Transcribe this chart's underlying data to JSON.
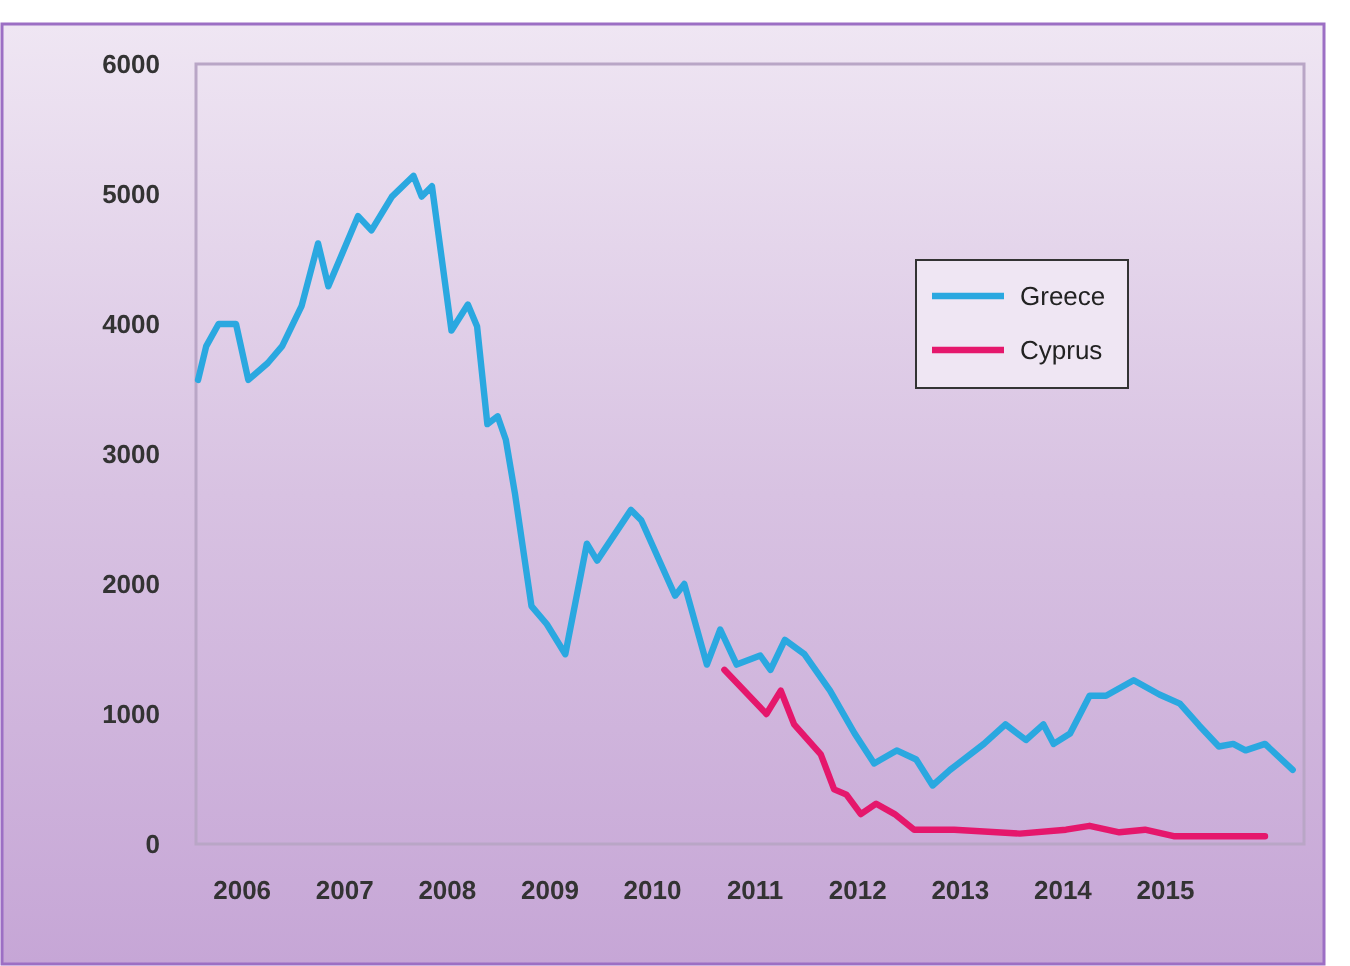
{
  "chart_data": {
    "type": "line",
    "xlim": [
      2005.55,
      2016.35
    ],
    "xticks": [
      2006,
      2007,
      2008,
      2009,
      2010,
      2011,
      2012,
      2013,
      2014,
      2015
    ],
    "ylim": [
      0,
      6000
    ],
    "yticks": [
      0,
      1000,
      2000,
      3000,
      4000,
      5000,
      6000
    ],
    "grid": false,
    "legend": "top right",
    "marker": "none",
    "line_style": "solid",
    "series": [
      {
        "name": "Greece",
        "color": "#2aa8e0",
        "x": [
          2005.57,
          2005.65,
          2005.77,
          2005.94,
          2006.06,
          2006.25,
          2006.39,
          2006.58,
          2006.74,
          2006.84,
          2007.13,
          2007.26,
          2007.46,
          2007.67,
          2007.75,
          2007.85,
          2008.04,
          2008.2,
          2008.29,
          2008.39,
          2008.49,
          2008.57,
          2008.66,
          2008.82,
          2008.97,
          2009.15,
          2009.36,
          2009.46,
          2009.79,
          2009.89,
          2010.22,
          2010.31,
          2010.53,
          2010.66,
          2010.82,
          2011.05,
          2011.15,
          2011.29,
          2011.48,
          2011.73,
          2011.97,
          2012.16,
          2012.38,
          2012.57,
          2012.73,
          2012.9,
          2013.23,
          2013.44,
          2013.64,
          2013.81,
          2013.91,
          2014.07,
          2014.26,
          2014.42,
          2014.69,
          2014.94,
          2015.14,
          2015.33,
          2015.52,
          2015.66,
          2015.78,
          2015.97,
          2016.24
        ],
        "values": [
          3570,
          3830,
          4000,
          4000,
          3570,
          3700,
          3830,
          4140,
          4620,
          4290,
          4830,
          4720,
          4980,
          5140,
          4980,
          5060,
          3950,
          4150,
          3980,
          3230,
          3290,
          3110,
          2690,
          1830,
          1690,
          1460,
          2310,
          2180,
          2570,
          2490,
          1910,
          2000,
          1380,
          1650,
          1380,
          1450,
          1340,
          1570,
          1460,
          1180,
          850,
          620,
          720,
          650,
          450,
          570,
          770,
          920,
          800,
          920,
          770,
          850,
          1140,
          1140,
          1260,
          1150,
          1080,
          910,
          750,
          770,
          720,
          770,
          570
        ]
      },
      {
        "name": "Cyprus",
        "color": "#e5176c",
        "x": [
          2010.7,
          2011.11,
          2011.25,
          2011.38,
          2011.64,
          2011.77,
          2011.89,
          2012.03,
          2012.18,
          2012.36,
          2012.55,
          2012.94,
          2013.58,
          2014.03,
          2014.26,
          2014.55,
          2014.8,
          2015.08,
          2015.97
        ],
        "values": [
          1340,
          1000,
          1180,
          920,
          690,
          420,
          380,
          230,
          310,
          230,
          110,
          110,
          80,
          110,
          140,
          90,
          110,
          60,
          60
        ]
      }
    ]
  }
}
